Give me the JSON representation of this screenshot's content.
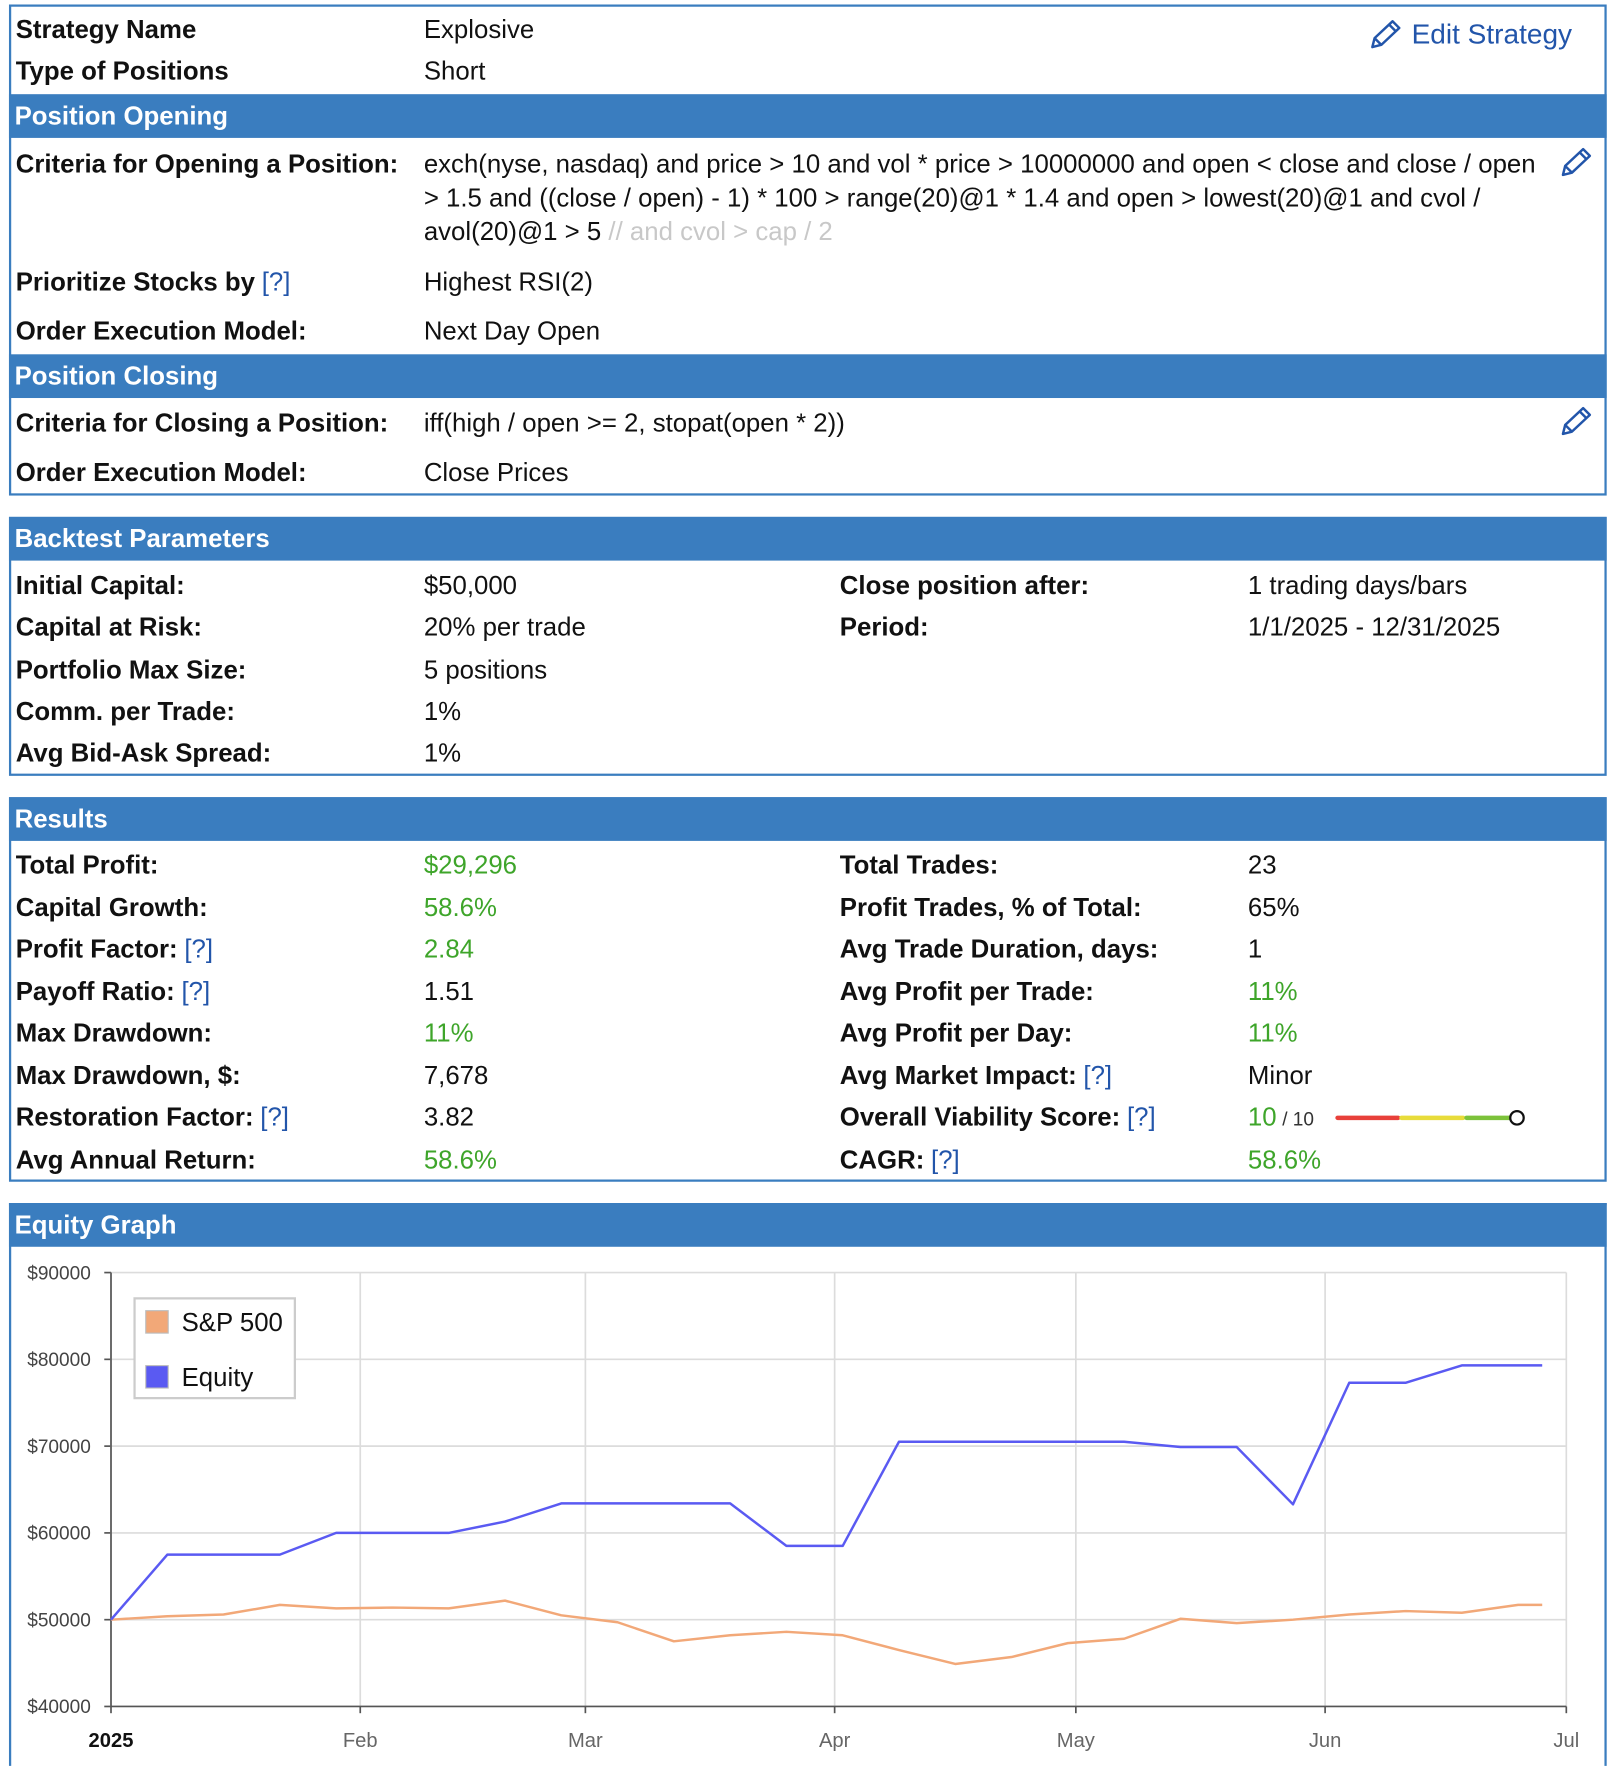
{
  "strategy": {
    "rows": [
      {
        "label": "Strategy Name",
        "value": "Explosive"
      },
      {
        "label": "Type of Positions",
        "value": "Short"
      }
    ],
    "edit": "Edit Strategy"
  },
  "opening": {
    "title": "Position Opening",
    "criteria": {
      "label": "Criteria for Opening a Position:",
      "value": "exch(nyse, nasdaq) and price > 10 and vol * price > 10000000 and open < close and close / open > 1.5 and ((close / open) - 1) * 100 > range(20)@1 * 1.4 and open > lowest(20)@1 and cvol / avol(20)@1 > 5",
      "comment": "// and cvol > cap / 2"
    },
    "prioritize": {
      "label": "Prioritize Stocks by",
      "help": "[?]",
      "value": "Highest RSI(2)"
    },
    "order": {
      "label": "Order Execution Model:",
      "value": "Next Day Open"
    }
  },
  "closing": {
    "title": "Position Closing",
    "criteria": {
      "label": "Criteria for Closing a Position:",
      "value": "iff(high / open >= 2, stopat(open * 2))"
    },
    "order": {
      "label": "Order Execution Model:",
      "value": "Close Prices"
    }
  },
  "backtest": {
    "title": "Backtest Parameters",
    "left": [
      {
        "label": "Initial Capital:",
        "value": "$50,000"
      },
      {
        "label": "Capital at Risk:",
        "value": "20% per trade"
      },
      {
        "label": "Portfolio Max Size:",
        "value": "5 positions"
      },
      {
        "label": "Comm. per Trade:",
        "value": "1%"
      },
      {
        "label": "Avg Bid-Ask Spread:",
        "value": "1%"
      }
    ],
    "right": [
      {
        "label": "Close position after:",
        "value": "1 trading days/bars"
      },
      {
        "label": "Period:",
        "value": "1/1/2025 - 12/31/2025"
      }
    ]
  },
  "results": {
    "title": "Results",
    "left": [
      {
        "label": "Total Profit:",
        "value": "$29,296",
        "color": "#3ea52a"
      },
      {
        "label": "Capital Growth:",
        "value": "58.6%",
        "color": "#3ea52a"
      },
      {
        "label": "Profit Factor:",
        "help": "[?]",
        "value": "2.84",
        "color": "#3ea52a"
      },
      {
        "label": "Payoff Ratio:",
        "help": "[?]",
        "value": "1.51"
      },
      {
        "label": "Max Drawdown:",
        "value": "11%",
        "color": "#3ea52a"
      },
      {
        "label": "Max Drawdown, $:",
        "value": "7,678"
      },
      {
        "label": "Restoration Factor:",
        "help": "[?]",
        "value": "3.82"
      },
      {
        "label": "Avg Annual Return:",
        "value": "58.6%",
        "color": "#3ea52a"
      }
    ],
    "right": [
      {
        "label": "Total Trades:",
        "value": "23"
      },
      {
        "label": "Profit Trades, % of Total:",
        "value": "65%"
      },
      {
        "label": "Avg Trade Duration, days:",
        "value": "1"
      },
      {
        "label": "Avg Profit per Trade:",
        "value": "11%",
        "color": "#3ea52a"
      },
      {
        "label": "Avg Profit per Day:",
        "value": "11%",
        "color": "#3ea52a"
      },
      {
        "label": "Avg Market Impact:",
        "help": "[?]",
        "value": "Minor"
      },
      {
        "label": "Overall Viability Score:",
        "help": "[?]",
        "value": "10",
        "suffix": "/ 10",
        "color": "#3ea52a"
      },
      {
        "label": "CAGR:",
        "help": "[?]",
        "value": "58.6%",
        "color": "#3ea52a"
      }
    ]
  },
  "chart_data": {
    "type": "line",
    "title": "Equity Graph",
    "x": [
      0,
      7,
      14,
      21,
      28,
      35,
      42,
      49,
      56,
      63,
      70,
      77,
      84,
      91,
      98,
      105,
      112,
      119,
      126,
      133,
      140,
      147,
      154,
      161,
      168,
      175,
      178
    ],
    "xlim": [
      0,
      181
    ],
    "xticks": [
      {
        "value": 0,
        "label": "2025"
      },
      {
        "value": 31,
        "label": "Feb"
      },
      {
        "value": 59,
        "label": "Mar"
      },
      {
        "value": 90,
        "label": "Apr"
      },
      {
        "value": 120,
        "label": "May"
      },
      {
        "value": 151,
        "label": "Jun"
      },
      {
        "value": 181,
        "label": "Jul"
      }
    ],
    "ylim": [
      40000,
      90000
    ],
    "yticks": [
      {
        "value": 40000,
        "label": "$40000"
      },
      {
        "value": 50000,
        "label": "$50000"
      },
      {
        "value": 60000,
        "label": "$60000"
      },
      {
        "value": 70000,
        "label": "$70000"
      },
      {
        "value": 80000,
        "label": "$80000"
      },
      {
        "value": 90000,
        "label": "$90000"
      }
    ],
    "grid": true,
    "legend": "top-left",
    "series": [
      {
        "name": "S&P 500",
        "color": "#f2a878",
        "values": [
          50000,
          50400,
          50600,
          51700,
          51300,
          51400,
          51300,
          52200,
          50500,
          49700,
          47500,
          48200,
          48600,
          48200,
          46500,
          44900,
          45700,
          47300,
          47800,
          50100,
          49600,
          50000,
          50600,
          51000,
          50800,
          51700,
          51700
        ]
      },
      {
        "name": "Equity",
        "color": "#5a5af2",
        "values": [
          50000,
          57500,
          57500,
          57500,
          60000,
          60000,
          60000,
          61300,
          63400,
          63400,
          63400,
          63400,
          58500,
          58500,
          70500,
          70500,
          70500,
          70500,
          70500,
          69900,
          69900,
          63300,
          77300,
          77300,
          79300,
          79300,
          79296
        ]
      }
    ]
  }
}
